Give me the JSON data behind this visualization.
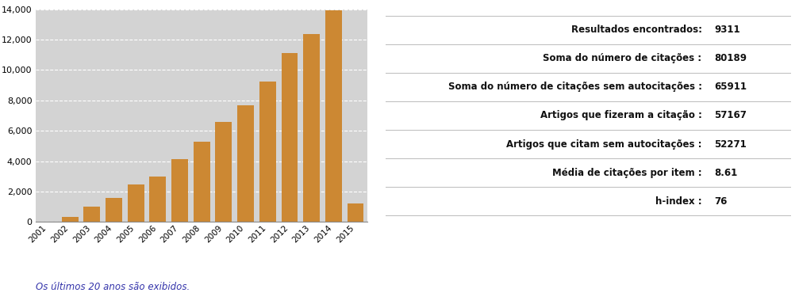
{
  "years": [
    "2001",
    "2002",
    "2003",
    "2004",
    "2005",
    "2006",
    "2007",
    "2008",
    "2009",
    "2010",
    "2011",
    "2012",
    "2013",
    "2014",
    "2015"
  ],
  "values": [
    0,
    350,
    1000,
    1600,
    2450,
    3000,
    4150,
    5300,
    6600,
    7650,
    9250,
    11100,
    12350,
    13900,
    1200
  ],
  "bar_color": "#CC8833",
  "chart_bg": "#D3D3D3",
  "ylim": [
    0,
    14000
  ],
  "yticks": [
    0,
    2000,
    4000,
    6000,
    8000,
    10000,
    12000,
    14000
  ],
  "footnote": "Os últimos 20 anos são exibidos.",
  "table_rows": [
    [
      "Resultados encontrados:",
      "9311"
    ],
    [
      "Soma do número de citações :",
      "80189"
    ],
    [
      "Soma do número de citações sem autocitações :",
      "65911"
    ],
    [
      "Artigos que fizeram a citação :",
      "57167"
    ],
    [
      "Artigos que citam sem autocitações :",
      "52271"
    ],
    [
      "Média de citações por item :",
      "8.61"
    ],
    [
      "h-index :",
      "76"
    ]
  ],
  "table_line_color": "#BBBBBB",
  "table_bg": "#FFFFFF",
  "label_fontsize": 8.5,
  "value_fontsize": 8.5
}
